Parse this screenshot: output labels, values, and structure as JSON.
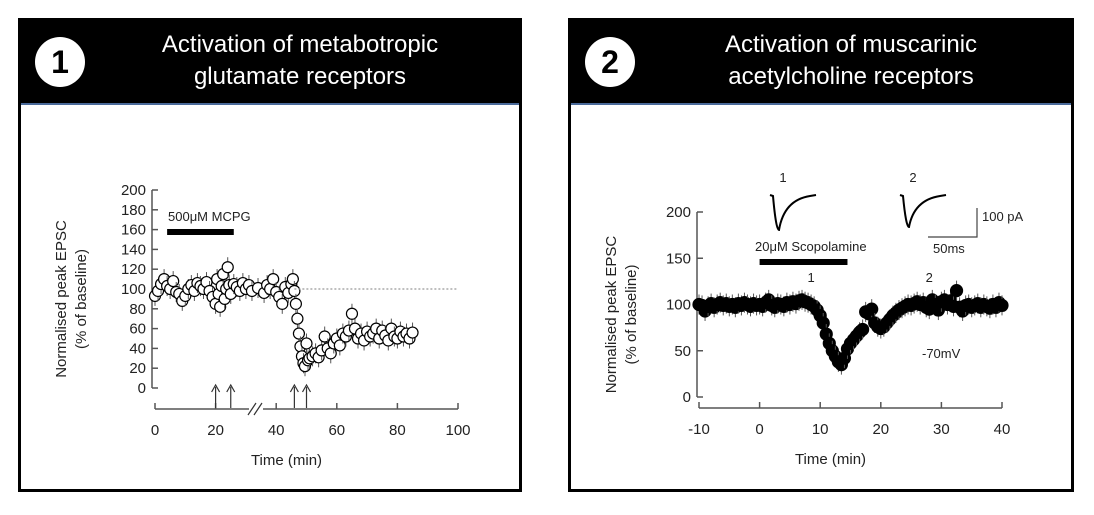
{
  "panels": [
    {
      "number": "1",
      "title_line1": "Activation of metabotropic",
      "title_line2": "glutamate receptors"
    },
    {
      "number": "2",
      "title_line1": "Activation of muscarinic",
      "title_line2": "acetylcholine receptors"
    }
  ],
  "chart_data": [
    {
      "type": "scatter",
      "title": "Activation of metabotropic glutamate receptors",
      "xlabel": "Time (min)",
      "ylabel": "Normalised peak EPSC",
      "ylabel2": "(% of baseline)",
      "xlim": [
        0,
        100
      ],
      "ylim": [
        0,
        200
      ],
      "xticks": [
        "0",
        "20",
        "40",
        "60",
        "80",
        "100"
      ],
      "yticks": [
        "0",
        "20",
        "40",
        "60",
        "80",
        "100",
        "120",
        "140",
        "160",
        "180",
        "200"
      ],
      "marker": "open-circle",
      "baseline": 100,
      "drug_bar": {
        "label": "500μM MCPG",
        "start": 4,
        "end": 26
      },
      "arrows_at": [
        20,
        25,
        46,
        50
      ],
      "axis_break_at": 33,
      "points": [
        [
          0,
          93
        ],
        [
          1,
          98
        ],
        [
          2,
          105
        ],
        [
          3,
          110
        ],
        [
          4,
          103
        ],
        [
          5,
          100
        ],
        [
          6,
          108
        ],
        [
          7,
          97
        ],
        [
          8,
          95
        ],
        [
          9,
          88
        ],
        [
          10,
          93
        ],
        [
          11,
          100
        ],
        [
          12,
          104
        ],
        [
          13,
          98
        ],
        [
          14,
          106
        ],
        [
          15,
          103
        ],
        [
          16,
          100
        ],
        [
          17,
          107
        ],
        [
          18,
          98
        ],
        [
          19,
          92
        ],
        [
          20,
          85
        ],
        [
          20.5,
          110
        ],
        [
          21,
          95
        ],
        [
          21.5,
          82
        ],
        [
          22,
          103
        ],
        [
          22.5,
          115
        ],
        [
          23,
          90
        ],
        [
          23.5,
          100
        ],
        [
          24,
          122
        ],
        [
          24.5,
          104
        ],
        [
          25,
          95
        ],
        [
          26,
          105
        ],
        [
          27,
          102
        ],
        [
          28,
          98
        ],
        [
          29,
          106
        ],
        [
          30,
          100
        ],
        [
          31,
          104
        ],
        [
          32,
          98
        ],
        [
          34,
          101
        ],
        [
          36,
          96
        ],
        [
          37,
          104
        ],
        [
          38,
          100
        ],
        [
          39,
          110
        ],
        [
          40,
          97
        ],
        [
          41,
          92
        ],
        [
          42,
          85
        ],
        [
          43,
          102
        ],
        [
          44,
          96
        ],
        [
          45,
          105
        ],
        [
          45.5,
          110
        ],
        [
          46,
          98
        ],
        [
          46.5,
          85
        ],
        [
          47,
          70
        ],
        [
          47.5,
          55
        ],
        [
          48,
          42
        ],
        [
          48.5,
          32
        ],
        [
          49,
          25
        ],
        [
          49.5,
          22
        ],
        [
          50,
          45
        ],
        [
          50.5,
          28
        ],
        [
          51,
          30
        ],
        [
          52,
          32
        ],
        [
          53,
          35
        ],
        [
          54,
          31
        ],
        [
          55,
          38
        ],
        [
          56,
          52
        ],
        [
          57,
          40
        ],
        [
          58,
          35
        ],
        [
          59,
          45
        ],
        [
          60,
          50
        ],
        [
          61,
          43
        ],
        [
          62,
          55
        ],
        [
          63,
          52
        ],
        [
          64,
          58
        ],
        [
          65,
          75
        ],
        [
          66,
          60
        ],
        [
          67,
          50
        ],
        [
          68,
          55
        ],
        [
          69,
          48
        ],
        [
          70,
          57
        ],
        [
          71,
          52
        ],
        [
          72,
          55
        ],
        [
          73,
          60
        ],
        [
          74,
          50
        ],
        [
          75,
          58
        ],
        [
          76,
          53
        ],
        [
          77,
          48
        ],
        [
          78,
          60
        ],
        [
          79,
          52
        ],
        [
          80,
          50
        ],
        [
          81,
          57
        ],
        [
          82,
          52
        ],
        [
          83,
          55
        ],
        [
          84,
          50
        ],
        [
          85,
          56
        ]
      ]
    },
    {
      "type": "scatter",
      "title": "Activation of muscarinic acetylcholine receptors",
      "xlabel": "Time (min)",
      "ylabel": "Normalised peak EPSC",
      "ylabel2": "(% of baseline)",
      "xlim": [
        -10,
        40
      ],
      "ylim": [
        0,
        200
      ],
      "xticks": [
        "-10",
        "0",
        "10",
        "20",
        "30",
        "40"
      ],
      "yticks": [
        "0",
        "50",
        "100",
        "150",
        "200"
      ],
      "marker": "filled-circle",
      "drug_bar": {
        "label": "20μM Scopolamine",
        "start": 0,
        "end": 14.5
      },
      "markers": [
        {
          "label": "1",
          "x": 8.5
        },
        {
          "label": "2",
          "x": 28
        }
      ],
      "annotation": "-70mV",
      "traces": [
        {
          "label": "1"
        },
        {
          "label": "2"
        }
      ],
      "scale_bar": {
        "y_label": "100 pA",
        "x_label": "50ms"
      },
      "points": [
        [
          -10,
          100
        ],
        [
          -9.5,
          99
        ],
        [
          -9,
          93
        ],
        [
          -8.5,
          98
        ],
        [
          -8,
          101
        ],
        [
          -7.5,
          97
        ],
        [
          -7,
          100
        ],
        [
          -6.5,
          102
        ],
        [
          -6,
          99
        ],
        [
          -5.5,
          101
        ],
        [
          -5,
          98
        ],
        [
          -4.5,
          100
        ],
        [
          -4,
          97
        ],
        [
          -3.5,
          101
        ],
        [
          -3,
          99
        ],
        [
          -2.5,
          102
        ],
        [
          -2,
          100
        ],
        [
          -1.5,
          98
        ],
        [
          -1,
          101
        ],
        [
          -0.5,
          99
        ],
        [
          0,
          100
        ],
        [
          0.5,
          98
        ],
        [
          1,
          102
        ],
        [
          1.5,
          105
        ],
        [
          2,
          99
        ],
        [
          2.5,
          97
        ],
        [
          3,
          101
        ],
        [
          3.5,
          100
        ],
        [
          4,
          98
        ],
        [
          4.5,
          102
        ],
        [
          5,
          100
        ],
        [
          5.5,
          103
        ],
        [
          6,
          101
        ],
        [
          6.5,
          104
        ],
        [
          7,
          105
        ],
        [
          7.5,
          103
        ],
        [
          8,
          102
        ],
        [
          8.5,
          100
        ],
        [
          9,
          98
        ],
        [
          9.5,
          94
        ],
        [
          10,
          88
        ],
        [
          10.5,
          80
        ],
        [
          11,
          68
        ],
        [
          11.5,
          58
        ],
        [
          12,
          50
        ],
        [
          12.5,
          44
        ],
        [
          13,
          38
        ],
        [
          13.5,
          35
        ],
        [
          14,
          42
        ],
        [
          14.5,
          52
        ],
        [
          15,
          58
        ],
        [
          15.5,
          62
        ],
        [
          16,
          66
        ],
        [
          16.5,
          70
        ],
        [
          17,
          73
        ],
        [
          17.5,
          92
        ],
        [
          18,
          90
        ],
        [
          18.5,
          95
        ],
        [
          19,
          80
        ],
        [
          19.5,
          76
        ],
        [
          20,
          74
        ],
        [
          20.5,
          76
        ],
        [
          21,
          80
        ],
        [
          21.5,
          84
        ],
        [
          22,
          88
        ],
        [
          22.5,
          91
        ],
        [
          23,
          94
        ],
        [
          23.5,
          96
        ],
        [
          24,
          98
        ],
        [
          24.5,
          100
        ],
        [
          25,
          99
        ],
        [
          25.5,
          101
        ],
        [
          26,
          103
        ],
        [
          26.5,
          100
        ],
        [
          27,
          102
        ],
        [
          27.5,
          97
        ],
        [
          28,
          95
        ],
        [
          28.5,
          105
        ],
        [
          29,
          100
        ],
        [
          29.5,
          94
        ],
        [
          30,
          103
        ],
        [
          30.5,
          105
        ],
        [
          31,
          100
        ],
        [
          31.5,
          104
        ],
        [
          32,
          98
        ],
        [
          32.5,
          115
        ],
        [
          33,
          97
        ],
        [
          33.5,
          93
        ],
        [
          34,
          99
        ],
        [
          34.5,
          100
        ],
        [
          35,
          97
        ],
        [
          35.5,
          99
        ],
        [
          36,
          101
        ],
        [
          36.5,
          97
        ],
        [
          37,
          100
        ],
        [
          37.5,
          98
        ],
        [
          38,
          96
        ],
        [
          38.5,
          100
        ],
        [
          39,
          97
        ],
        [
          39.5,
          102
        ],
        [
          40,
          99
        ]
      ]
    }
  ]
}
